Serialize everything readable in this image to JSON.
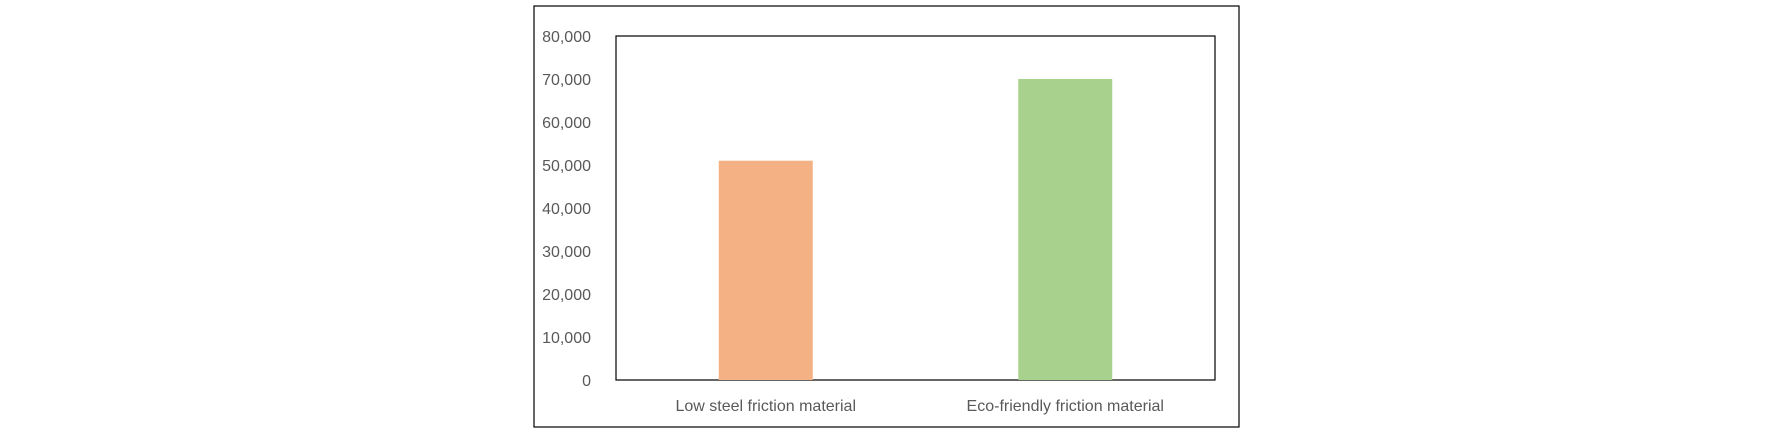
{
  "chart_data": {
    "type": "bar",
    "categories": [
      "Low steel friction material",
      "Eco-friendly friction material"
    ],
    "values": [
      51000,
      70000
    ],
    "colors": [
      "#f4b183",
      "#a9d18e"
    ],
    "title": "",
    "xlabel": "",
    "ylabel": "",
    "ylim": [
      0,
      80000
    ],
    "yticks": [
      "0",
      "10,000",
      "20,000",
      "30,000",
      "40,000",
      "50,000",
      "60,000",
      "70,000",
      "80,000"
    ],
    "grid": false,
    "legend": "none"
  }
}
